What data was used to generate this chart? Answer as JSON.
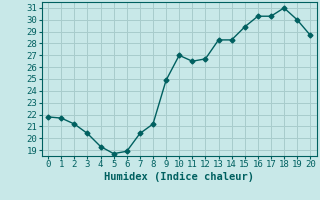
{
  "x": [
    0,
    1,
    2,
    3,
    4,
    5,
    6,
    7,
    8,
    9,
    10,
    11,
    12,
    13,
    14,
    15,
    16,
    17,
    18,
    19,
    20
  ],
  "y": [
    21.8,
    21.7,
    21.2,
    20.4,
    19.3,
    18.7,
    18.9,
    20.4,
    21.2,
    24.9,
    27.0,
    26.5,
    26.7,
    28.3,
    28.3,
    29.4,
    30.3,
    30.3,
    31.0,
    30.0,
    28.7
  ],
  "xlabel": "Humidex (Indice chaleur)",
  "xlim": [
    -0.5,
    20.5
  ],
  "ylim": [
    18.5,
    31.5
  ],
  "yticks": [
    19,
    20,
    21,
    22,
    23,
    24,
    25,
    26,
    27,
    28,
    29,
    30,
    31
  ],
  "xticks": [
    0,
    1,
    2,
    3,
    4,
    5,
    6,
    7,
    8,
    9,
    10,
    11,
    12,
    13,
    14,
    15,
    16,
    17,
    18,
    19,
    20
  ],
  "line_color": "#006060",
  "marker": "D",
  "marker_size": 2.5,
  "bg_color": "#c8e8e8",
  "grid_color": "#a8cccc",
  "label_fontsize": 7.5,
  "tick_fontsize": 6.5
}
